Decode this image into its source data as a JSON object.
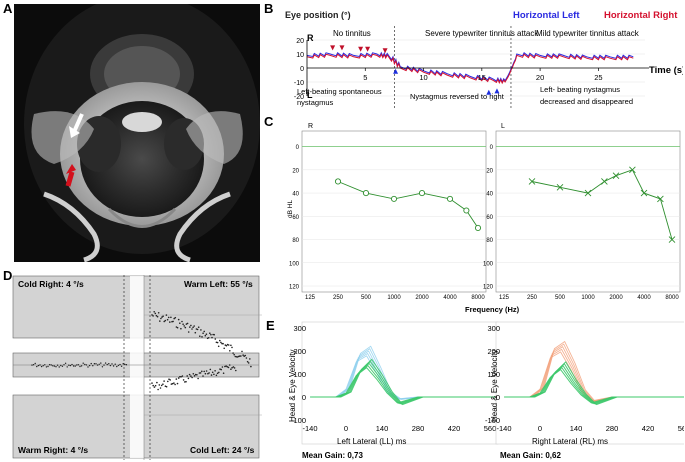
{
  "panels": {
    "A": {
      "letter": "A"
    },
    "B": {
      "letter": "B",
      "title": "Eye position (°)",
      "legend_left": "Horizontal Left",
      "legend_right": "Horizontal Right",
      "colors": {
        "left": "#2a2ae0",
        "right": "#d4102e"
      },
      "label_R": "R",
      "label_L": "L",
      "x_unit": "Time (s)",
      "sections": [
        {
          "title": "No tinnitus",
          "note1": "Left-beating spontaneous",
          "note2": "nystagmus"
        },
        {
          "title": "Severe typewriter tinnitus attack",
          "note1": "Nystagmus reversed to right",
          "note2": ""
        },
        {
          "title": "Mild typewriter tinnitus attack",
          "note1": "Left- beating nystagmus",
          "note2": "decreased and disappeared"
        }
      ],
      "chart_data": {
        "type": "line",
        "title": "Eye position (°)",
        "xlabel": "Time (s)",
        "ylabel": "",
        "xlim": [
          0,
          29
        ],
        "ylim": [
          -20,
          20
        ],
        "x_ticks": [
          5,
          10,
          15,
          20,
          25
        ],
        "y_ticks": [
          20,
          10,
          0,
          -10,
          -20
        ],
        "series": [
          {
            "name": "Horizontal Left",
            "x": [
              0,
              2,
              4,
              6,
              7,
              8,
              10,
              12,
              14,
              16,
              17,
              18,
              20,
              22,
              24,
              26,
              28
            ],
            "values": [
              9,
              10,
              9,
              10,
              9,
              1,
              -2,
              -4,
              -6,
              -8,
              -9,
              10,
              9,
              9,
              8,
              8,
              8
            ]
          },
          {
            "name": "Horizontal Right",
            "x": [
              0,
              2,
              4,
              6,
              7,
              8,
              10,
              12,
              14,
              16,
              17,
              18,
              20,
              22,
              24,
              26,
              28
            ],
            "values": [
              8,
              9,
              8,
              9,
              8,
              0,
              -3,
              -5,
              -7,
              -9,
              -10,
              9,
              8,
              8,
              7,
              7,
              7
            ]
          }
        ]
      }
    },
    "C": {
      "letter": "C",
      "ear_right": "R",
      "ear_left": "L",
      "ylabel": "dB HL",
      "xlabel": "Frequency (Hz)",
      "chart_data": [
        {
          "type": "line",
          "title": "",
          "xlabel": "",
          "ylabel": "dB HL",
          "categories": [
            "125",
            "250",
            "500",
            "1000",
            "2000",
            "4000",
            "8000"
          ],
          "ylim": [
            -10,
            120
          ],
          "y_ticks": [
            0,
            20,
            40,
            60,
            80,
            100,
            120
          ],
          "series": [
            {
              "name": "",
              "x": [
                250,
                500,
                1000,
                2000,
                4000,
                6000,
                8000
              ],
              "values": [
                30,
                40,
                45,
                40,
                45,
                55,
                70
              ]
            }
          ]
        },
        {
          "type": "line",
          "title": "",
          "xlabel": "",
          "ylabel": "",
          "categories": [
            "125",
            "250",
            "500",
            "1000",
            "2000",
            "4000",
            "8000"
          ],
          "ylim": [
            -10,
            120
          ],
          "y_ticks": [
            0,
            20,
            40,
            60,
            80,
            100,
            120
          ],
          "series": [
            {
              "name": "",
              "x": [
                250,
                500,
                1000,
                1500,
                2000,
                3000,
                4000,
                6000,
                8000
              ],
              "values": [
                30,
                35,
                40,
                30,
                25,
                20,
                40,
                45,
                80
              ]
            }
          ]
        }
      ]
    },
    "D": {
      "letter": "D",
      "cold_right": "Cold Right: 4 °/s",
      "warm_left": "Warm Left: 55 °/s",
      "warm_right": "Warm Right: 4 °/s",
      "cold_left": "Cold Left: 24 °/s"
    },
    "E": {
      "letter": "E",
      "ylabel": "Head & Eye Velocity",
      "colors": {
        "head_left": "#8fd0ee",
        "head_right": "#f2a07a",
        "eye": "#3cc86a"
      },
      "charts": [
        {
          "xlabel": "Left Lateral (LL) ms",
          "mean_gain": "Mean Gain: 0,73"
        },
        {
          "xlabel": "Right Lateral (RL) ms",
          "mean_gain": "Mean Gain: 0,62"
        }
      ],
      "chart_data": [
        {
          "type": "line",
          "title": "",
          "xlabel": "Left Lateral (LL) ms",
          "ylabel": "Head & Eye Velocity",
          "xlim": [
            -140,
            560
          ],
          "ylim": [
            -100,
            300
          ],
          "x_ticks": [
            -140,
            0,
            140,
            280,
            420,
            560
          ],
          "y_ticks": [
            300,
            200,
            100,
            0,
            -100
          ],
          "series": [
            {
              "name": "",
              "x": [
                -140,
                -40,
                0,
                40,
                80,
                120,
                160,
                200,
                280,
                420,
                560
              ],
              "values": [
                0,
                0,
                40,
                180,
                210,
                120,
                20,
                -10,
                0,
                0,
                0
              ]
            },
            {
              "name": "",
              "x": [
                -140,
                -40,
                0,
                40,
                80,
                120,
                160,
                200,
                280,
                420,
                560
              ],
              "values": [
                0,
                0,
                20,
                110,
                150,
                90,
                20,
                -30,
                0,
                0,
                0
              ]
            }
          ]
        },
        {
          "type": "line",
          "title": "",
          "xlabel": "Right Lateral (RL) ms",
          "ylabel": "Head & Eye Velocity",
          "xlim": [
            -140,
            560
          ],
          "ylim": [
            -100,
            300
          ],
          "x_ticks": [
            -140,
            0,
            140,
            280,
            420,
            560
          ],
          "y_ticks": [
            300,
            200,
            100,
            0,
            -100
          ],
          "series": [
            {
              "name": "",
              "x": [
                -140,
                -40,
                0,
                40,
                80,
                120,
                160,
                200,
                280,
                420,
                560
              ],
              "values": [
                0,
                0,
                40,
                200,
                230,
                140,
                30,
                -20,
                0,
                0,
                0
              ]
            },
            {
              "name": "",
              "x": [
                -140,
                -40,
                0,
                40,
                80,
                120,
                160,
                200,
                280,
                420,
                560
              ],
              "values": [
                0,
                0,
                20,
                100,
                140,
                70,
                10,
                -30,
                0,
                0,
                0
              ]
            }
          ]
        }
      ]
    }
  }
}
